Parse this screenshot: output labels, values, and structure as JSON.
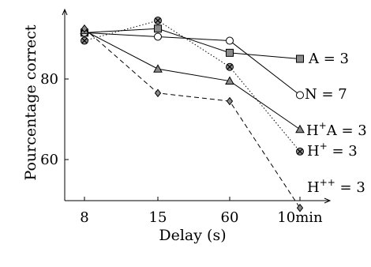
{
  "chart_data": {
    "type": "line",
    "title": "",
    "xlabel": "Delay (s)",
    "ylabel": "Pourcentage correct",
    "categories": [
      "8",
      "15",
      "60",
      "10min"
    ],
    "yticks": [
      60,
      80
    ],
    "ylim": [
      45,
      100
    ],
    "grid": false,
    "series": [
      {
        "name": "A = 3",
        "name_parts": [
          "A = 3",
          "",
          ""
        ],
        "marker": "square",
        "line": "solid",
        "color": "#000000",
        "values": [
          91.5,
          92.5,
          86.5,
          85.0
        ]
      },
      {
        "name": "N = 7",
        "name_parts": [
          "N = 7",
          "",
          ""
        ],
        "marker": "circle",
        "line": "solid",
        "color": "#000000",
        "values": [
          91.5,
          90.5,
          89.5,
          76.0
        ]
      },
      {
        "name": "H+A = 3",
        "name_parts": [
          "H",
          "+",
          "A = 3"
        ],
        "marker": "triangle",
        "line": "solid",
        "color": "#000000",
        "values": [
          92.0,
          82.5,
          79.5,
          67.5
        ]
      },
      {
        "name": "H+ = 3",
        "name_parts": [
          "H",
          "+",
          " = 3"
        ],
        "marker": "circle-x",
        "line": "dotted",
        "color": "#000000",
        "values": [
          89.5,
          94.5,
          83.0,
          62.0
        ]
      },
      {
        "name": "H++ = 3",
        "name_parts": [
          "H",
          "++",
          " = 3"
        ],
        "marker": "diamond",
        "line": "dashed",
        "color": "#000000",
        "values": [
          92.5,
          76.5,
          74.5,
          48.0
        ]
      }
    ]
  }
}
